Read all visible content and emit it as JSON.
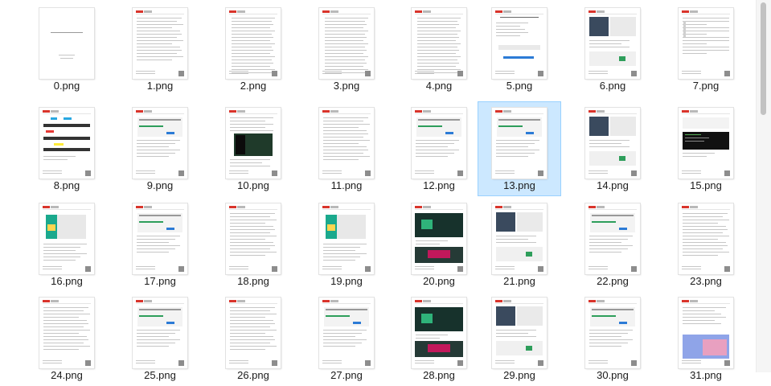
{
  "window": {
    "description_label": "File explorer extra-large icons view"
  },
  "files": [
    {
      "name": "0.png",
      "kind": "cover"
    },
    {
      "name": "1.png",
      "kind": "text"
    },
    {
      "name": "2.png",
      "kind": "toc"
    },
    {
      "name": "3.png",
      "kind": "toc"
    },
    {
      "name": "4.png",
      "kind": "toc"
    },
    {
      "name": "5.png",
      "kind": "title"
    },
    {
      "name": "6.png",
      "kind": "screens"
    },
    {
      "name": "7.png",
      "kind": "table"
    },
    {
      "name": "8.png",
      "kind": "colors"
    },
    {
      "name": "9.png",
      "kind": "dialog"
    },
    {
      "name": "10.png",
      "kind": "dark"
    },
    {
      "name": "11.png",
      "kind": "text"
    },
    {
      "name": "12.png",
      "kind": "dialog"
    },
    {
      "name": "13.png",
      "kind": "dialog",
      "selected": true
    },
    {
      "name": "14.png",
      "kind": "screens"
    },
    {
      "name": "15.png",
      "kind": "terminal"
    },
    {
      "name": "16.png",
      "kind": "teal"
    },
    {
      "name": "17.png",
      "kind": "dialog"
    },
    {
      "name": "18.png",
      "kind": "text"
    },
    {
      "name": "19.png",
      "kind": "teal"
    },
    {
      "name": "20.png",
      "kind": "splash"
    },
    {
      "name": "21.png",
      "kind": "screens"
    },
    {
      "name": "22.png",
      "kind": "dialog"
    },
    {
      "name": "23.png",
      "kind": "text"
    },
    {
      "name": "24.png",
      "kind": "text"
    },
    {
      "name": "25.png",
      "kind": "dialog"
    },
    {
      "name": "26.png",
      "kind": "text"
    },
    {
      "name": "27.png",
      "kind": "dialog"
    },
    {
      "name": "28.png",
      "kind": "splash"
    },
    {
      "name": "29.png",
      "kind": "screens"
    },
    {
      "name": "30.png",
      "kind": "dialog"
    },
    {
      "name": "31.png",
      "kind": "desktop"
    }
  ],
  "colors": {
    "selection_bg": "#cce8ff",
    "selection_border": "#99d1ff",
    "accent_red": "#d9342b"
  }
}
